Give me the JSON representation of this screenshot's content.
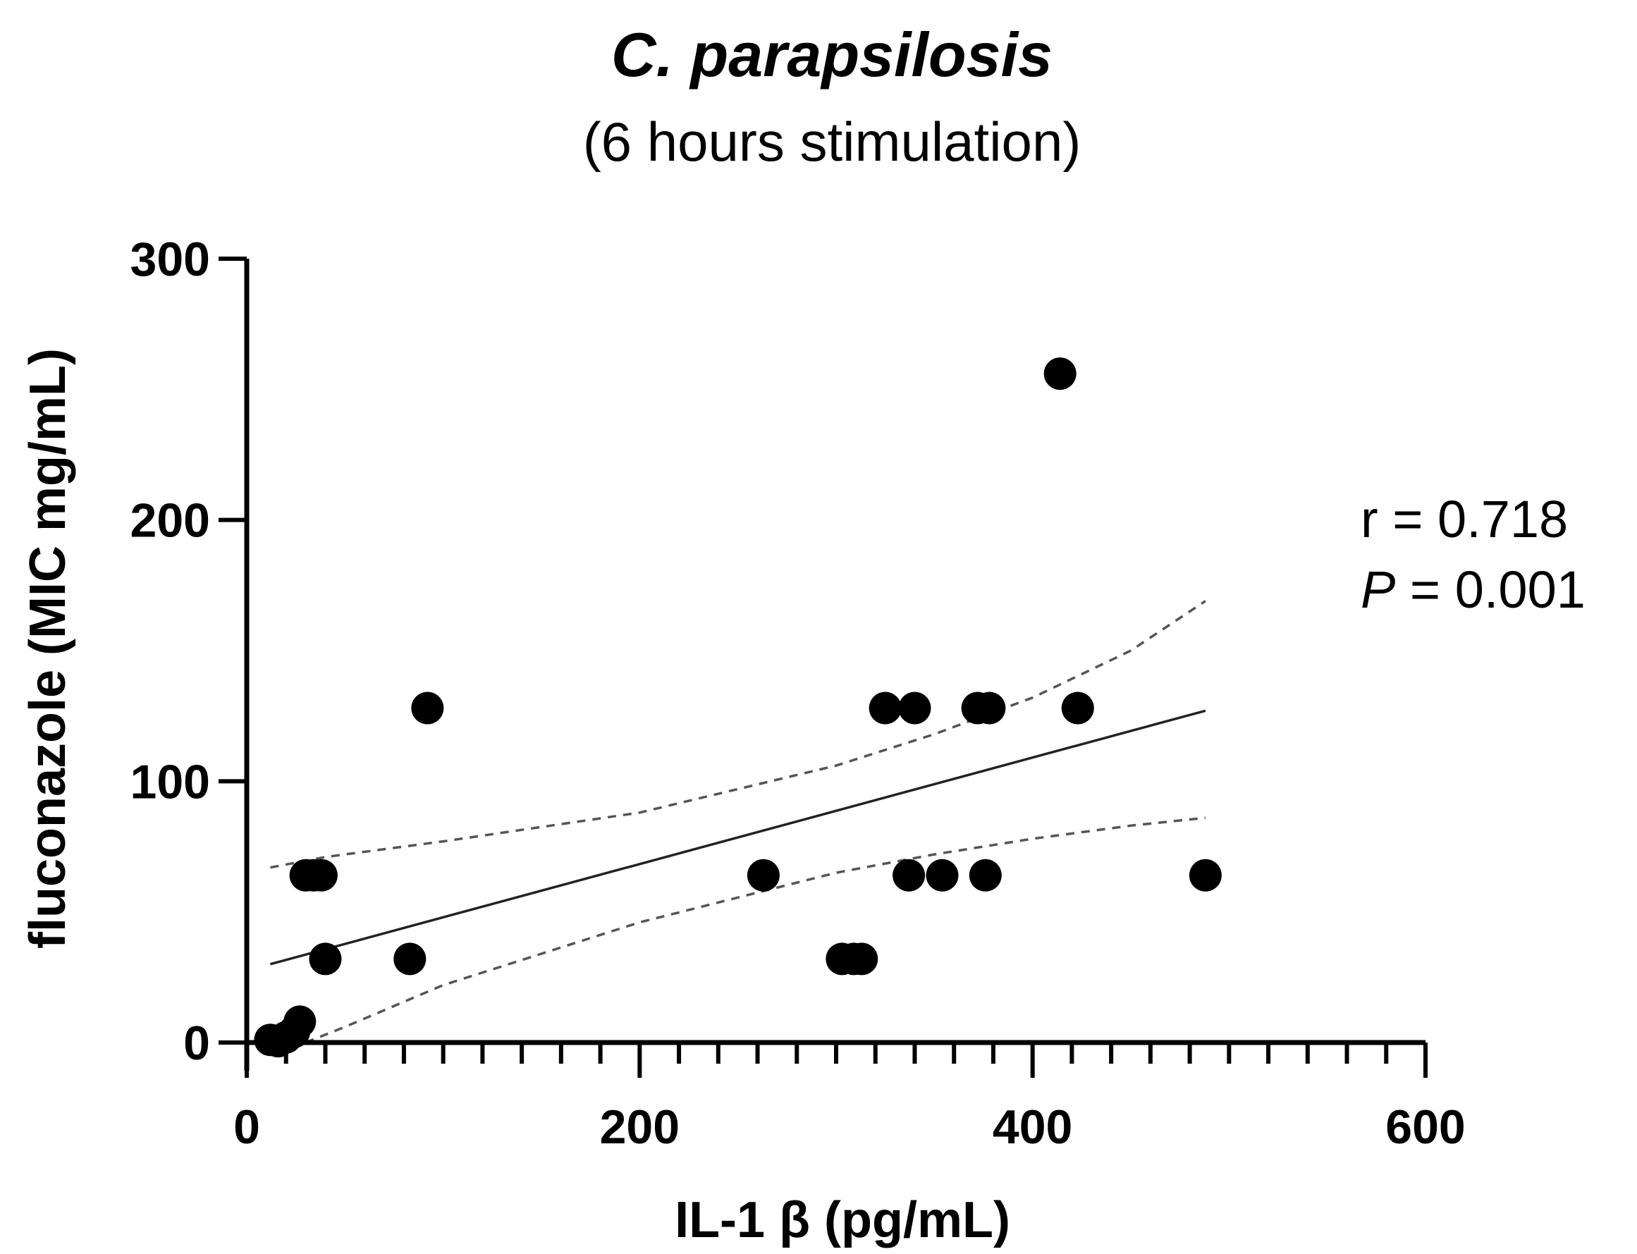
{
  "chart_data": {
    "type": "scatter",
    "title": "C. parapsilosis",
    "subtitle": "(6 hours stimulation)",
    "xlabel": "IL-1 β (pg/mL)",
    "ylabel": "fluconazole (MIC mg/mL)",
    "xlim": [
      0,
      600
    ],
    "ylim": [
      0,
      300
    ],
    "xticks": [
      "0",
      "200",
      "400",
      "600"
    ],
    "yticks": [
      "0",
      "100",
      "200",
      "300"
    ],
    "x_major_values": [
      0,
      200,
      400,
      600
    ],
    "y_major_values": [
      0,
      100,
      200,
      300
    ],
    "x_minor_step": 20,
    "points": [
      {
        "x": 12,
        "y": 1
      },
      {
        "x": 16,
        "y": 0.5
      },
      {
        "x": 20,
        "y": 2
      },
      {
        "x": 24,
        "y": 4
      },
      {
        "x": 27,
        "y": 8
      },
      {
        "x": 30,
        "y": 64
      },
      {
        "x": 34,
        "y": 64
      },
      {
        "x": 38,
        "y": 64
      },
      {
        "x": 40,
        "y": 32
      },
      {
        "x": 83,
        "y": 32
      },
      {
        "x": 92,
        "y": 128
      },
      {
        "x": 263,
        "y": 64
      },
      {
        "x": 303,
        "y": 32
      },
      {
        "x": 309,
        "y": 32
      },
      {
        "x": 313,
        "y": 32
      },
      {
        "x": 325,
        "y": 128
      },
      {
        "x": 340,
        "y": 128
      },
      {
        "x": 337,
        "y": 64
      },
      {
        "x": 354,
        "y": 64
      },
      {
        "x": 372,
        "y": 128
      },
      {
        "x": 378,
        "y": 128
      },
      {
        "x": 376,
        "y": 64
      },
      {
        "x": 414,
        "y": 256
      },
      {
        "x": 423,
        "y": 128
      },
      {
        "x": 488,
        "y": 64
      }
    ],
    "fit_line": {
      "x": [
        12,
        488
      ],
      "y": [
        30,
        127
      ]
    },
    "ci_upper": {
      "x": [
        12,
        40,
        100,
        200,
        300,
        350,
        400,
        450,
        488
      ],
      "y": [
        67,
        71,
        77,
        88,
        106,
        118,
        132,
        150,
        169
      ]
    },
    "ci_lower": {
      "x": [
        30,
        50,
        100,
        200,
        300,
        350,
        400,
        450,
        488
      ],
      "y": [
        0,
        6,
        22,
        46,
        65,
        72,
        78,
        83,
        86
      ]
    },
    "annotations": {
      "r_text": "r = 0.718",
      "p_symbol": "P",
      "p_text": " = 0.001"
    },
    "legend": "none",
    "grid": false
  }
}
